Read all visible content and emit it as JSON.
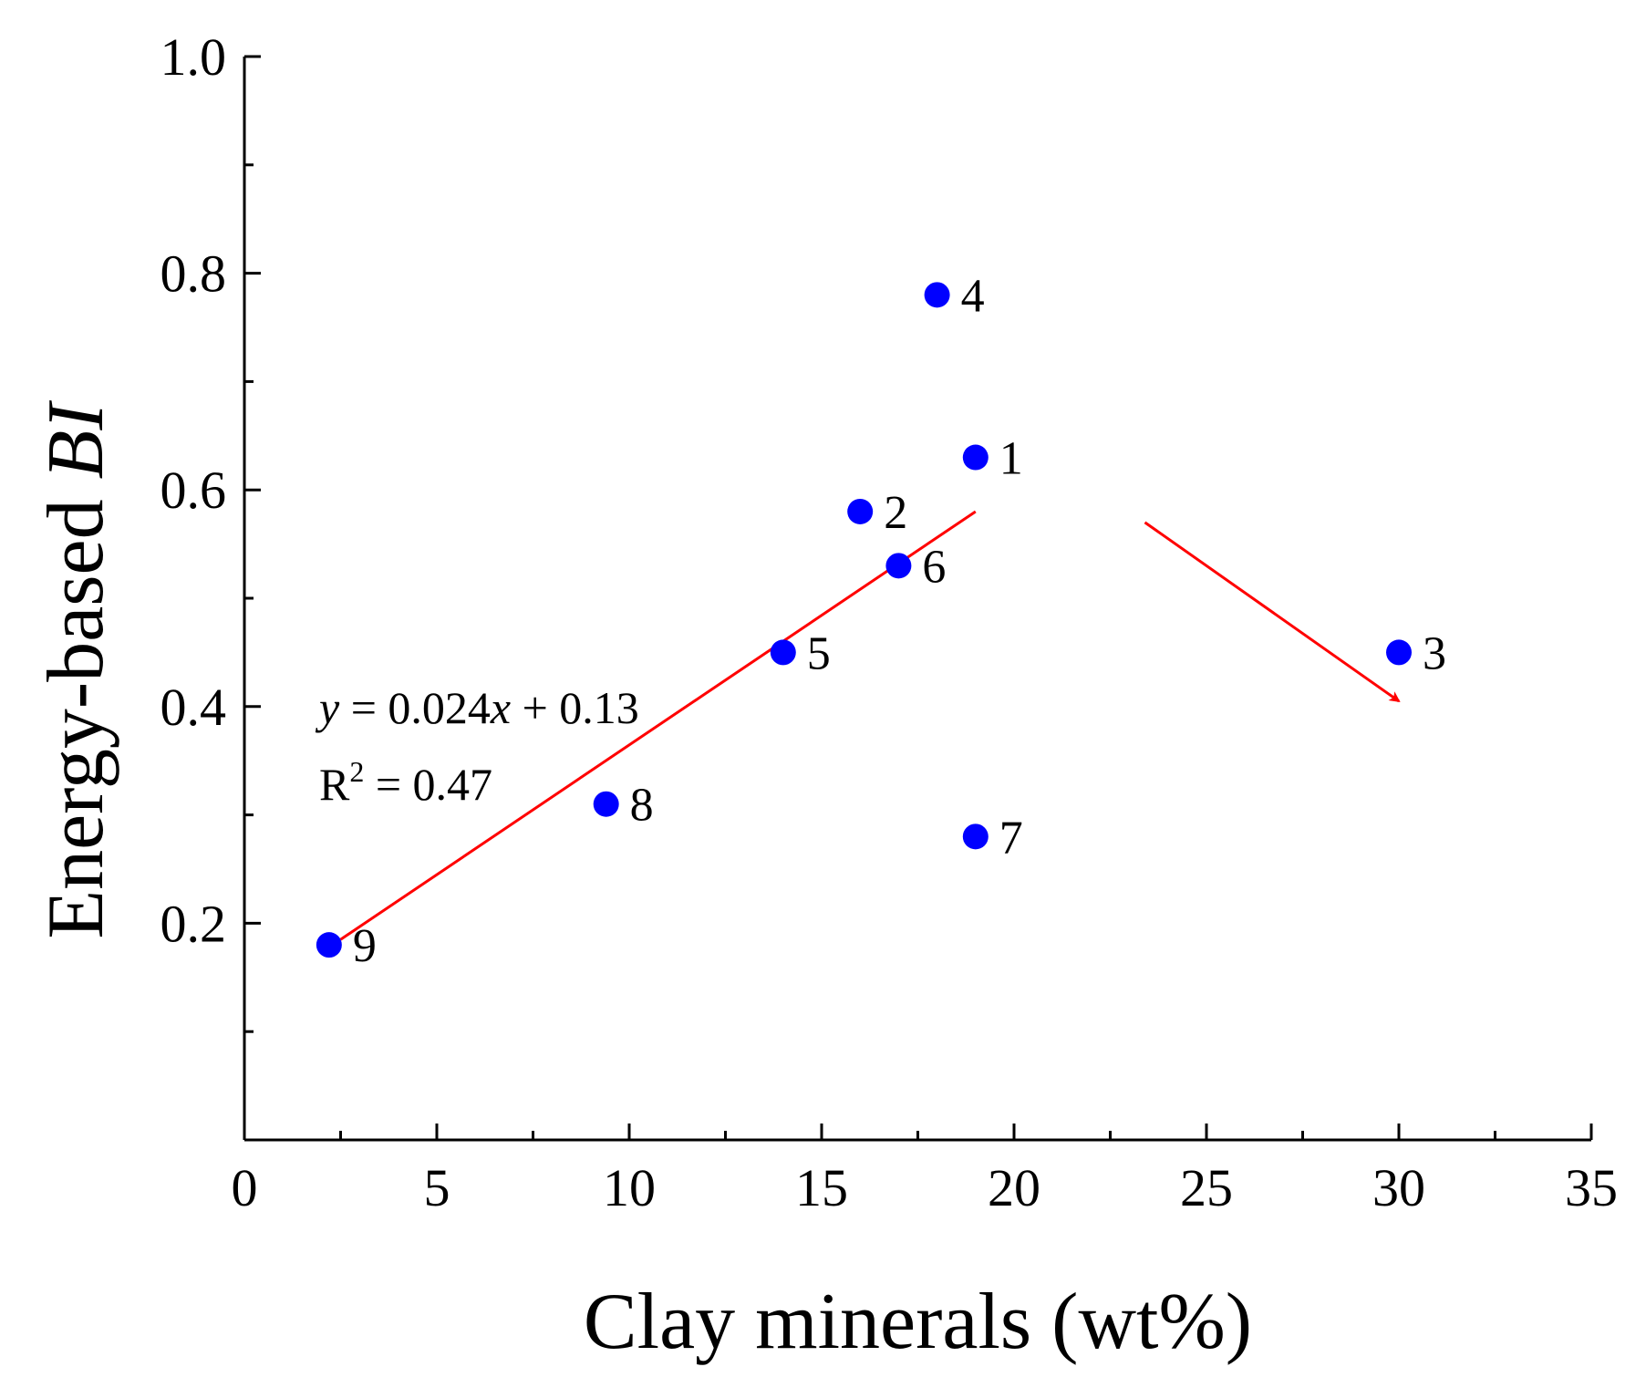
{
  "chart_data": {
    "type": "scatter",
    "xlabel": "Clay minerals (wt%)",
    "ylabel_prefix": "Energy-based ",
    "ylabel_italic": "BI",
    "xlim": [
      0,
      35
    ],
    "ylim": [
      0,
      1.0
    ],
    "x_ticks": [
      0,
      5,
      10,
      15,
      20,
      25,
      30,
      35
    ],
    "x_tick_labels": [
      "0",
      "5",
      "10",
      "15",
      "20",
      "25",
      "30",
      "35"
    ],
    "y_ticks": [
      0.2,
      0.4,
      0.6,
      0.8,
      1.0
    ],
    "y_tick_labels": [
      "0.2",
      "0.4",
      "0.6",
      "0.8",
      "1.0"
    ],
    "marker_color": "#0000ff",
    "line_color": "#ff0000",
    "points": [
      {
        "label": "1",
        "x": 19,
        "y": 0.63
      },
      {
        "label": "2",
        "x": 16,
        "y": 0.58
      },
      {
        "label": "3",
        "x": 30,
        "y": 0.45
      },
      {
        "label": "4",
        "x": 18,
        "y": 0.78
      },
      {
        "label": "5",
        "x": 14,
        "y": 0.45
      },
      {
        "label": "6",
        "x": 17,
        "y": 0.53
      },
      {
        "label": "7",
        "x": 19,
        "y": 0.28
      },
      {
        "label": "8",
        "x": 9.4,
        "y": 0.31
      },
      {
        "label": "9",
        "x": 2.2,
        "y": 0.18
      }
    ],
    "fit_line": {
      "x_start": 2.5,
      "x_end": 19,
      "y_start": 0.185,
      "y_end": 0.58
    },
    "trend_arrow": {
      "x_start": 23.4,
      "y_start": 0.57,
      "x_end": 30,
      "y_end": 0.405
    },
    "equation": {
      "y_var": "y",
      "eq_mid": " = 0.024",
      "x_var": "x",
      "eq_tail": " + 0.13",
      "r2_base": "R",
      "r2_sup": "2",
      "r2_value": " = 0.47"
    }
  }
}
